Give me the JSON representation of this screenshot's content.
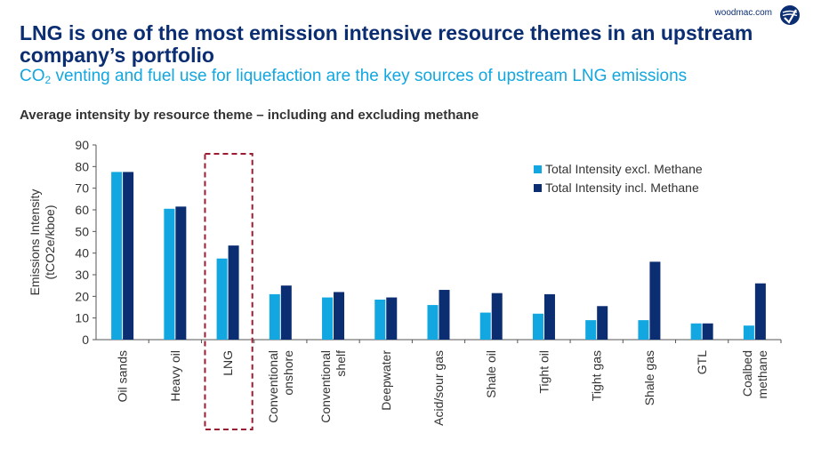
{
  "header": {
    "brand": "woodmac.com",
    "title": "LNG is one of the most emission intensive resource themes in an upstream company’s portfolio",
    "subtitle_pre": "CO",
    "subtitle_sub": "2",
    "subtitle_post": " venting and fuel use for liquefaction are the key sources of upstream LNG emissions"
  },
  "colors": {
    "excl": "#12a7e0",
    "incl": "#0b2d71",
    "highlight": "#9b1b30",
    "axis": "#555555"
  },
  "chart_data": {
    "type": "bar",
    "title": "Average intensity by resource theme – including and excluding methane",
    "ylabel_lines": [
      "Emissions Intensity",
      "(tCO2e/kboe)"
    ],
    "ylim": [
      0,
      90
    ],
    "yticks": [
      0,
      10,
      20,
      30,
      40,
      50,
      60,
      70,
      80,
      90
    ],
    "categories": [
      [
        "Oil sands"
      ],
      [
        "Heavy oil"
      ],
      [
        "LNG"
      ],
      [
        "Conventional",
        "onshore"
      ],
      [
        "Conventional",
        "shelf"
      ],
      [
        "Deepwater"
      ],
      [
        "Acid/sour gas"
      ],
      [
        "Shale oil"
      ],
      [
        "Tight oil"
      ],
      [
        "Tight gas"
      ],
      [
        "Shale gas"
      ],
      [
        "GTL"
      ],
      [
        "Coalbed",
        "methane"
      ]
    ],
    "highlight_category": 2,
    "series": [
      {
        "name": "Total Intensity excl. Methane",
        "values": [
          77.5,
          60.5,
          37.5,
          21,
          19.5,
          18.5,
          16,
          12.5,
          12,
          9,
          9,
          7.5,
          6.5
        ]
      },
      {
        "name": "Total Intensity incl. Methane",
        "values": [
          77.5,
          61.5,
          43.5,
          25,
          22,
          19.5,
          23,
          21.5,
          21,
          15.5,
          36,
          7.5,
          26
        ]
      }
    ],
    "legend": "top-right"
  }
}
